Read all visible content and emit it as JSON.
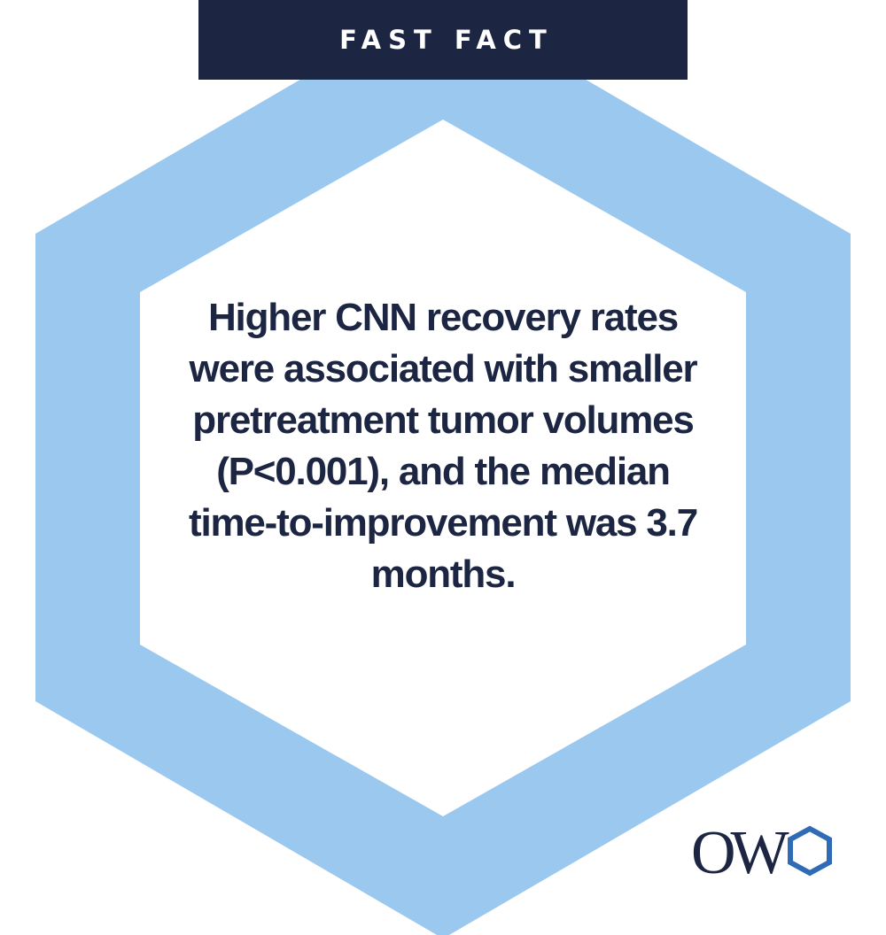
{
  "banner": {
    "label": "FAST FACT"
  },
  "fact": {
    "text": "Higher CNN recovery rates were associated with smaller pretreatment tumor volumes (P<0.001), and the median time-to-improvement was 3.7 months."
  },
  "logo": {
    "letters": "OW"
  },
  "colors": {
    "navy": "#1c2541",
    "light_blue": "#9bc8ef",
    "logo_blue": "#2f6cb5",
    "white": "#ffffff"
  }
}
